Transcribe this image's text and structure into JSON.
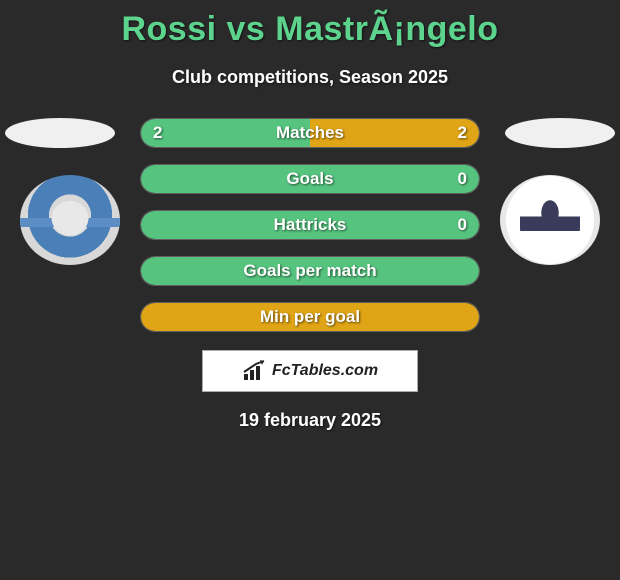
{
  "title": "Rossi vs MastrÃ¡ngelo",
  "subtitle": "Club competitions, Season 2025",
  "date": "19 february 2025",
  "brand": {
    "text": "FcTables.com"
  },
  "colors": {
    "accent": "#5dd48e",
    "bar_green": "#56c47f",
    "bar_orange": "#e0a516",
    "background": "#2a2a2a",
    "text": "#ffffff"
  },
  "stats": [
    {
      "label": "Matches",
      "left_value": "2",
      "right_value": "2",
      "left_pct": 50,
      "right_pct": 50,
      "left_color": "#56c47f",
      "right_color": "#e0a516"
    },
    {
      "label": "Goals",
      "left_value": "",
      "right_value": "0",
      "left_pct": 100,
      "right_pct": 0,
      "left_color": "#56c47f",
      "right_color": "#e0a516"
    },
    {
      "label": "Hattricks",
      "left_value": "",
      "right_value": "0",
      "left_pct": 100,
      "right_pct": 0,
      "left_color": "#56c47f",
      "right_color": "#e0a516"
    },
    {
      "label": "Goals per match",
      "left_value": "",
      "right_value": "",
      "left_pct": 100,
      "right_pct": 0,
      "left_color": "#56c47f",
      "right_color": "#e0a516"
    },
    {
      "label": "Min per goal",
      "left_value": "",
      "right_value": "",
      "left_pct": 0,
      "right_pct": 100,
      "left_color": "#56c47f",
      "right_color": "#e0a516"
    }
  ]
}
